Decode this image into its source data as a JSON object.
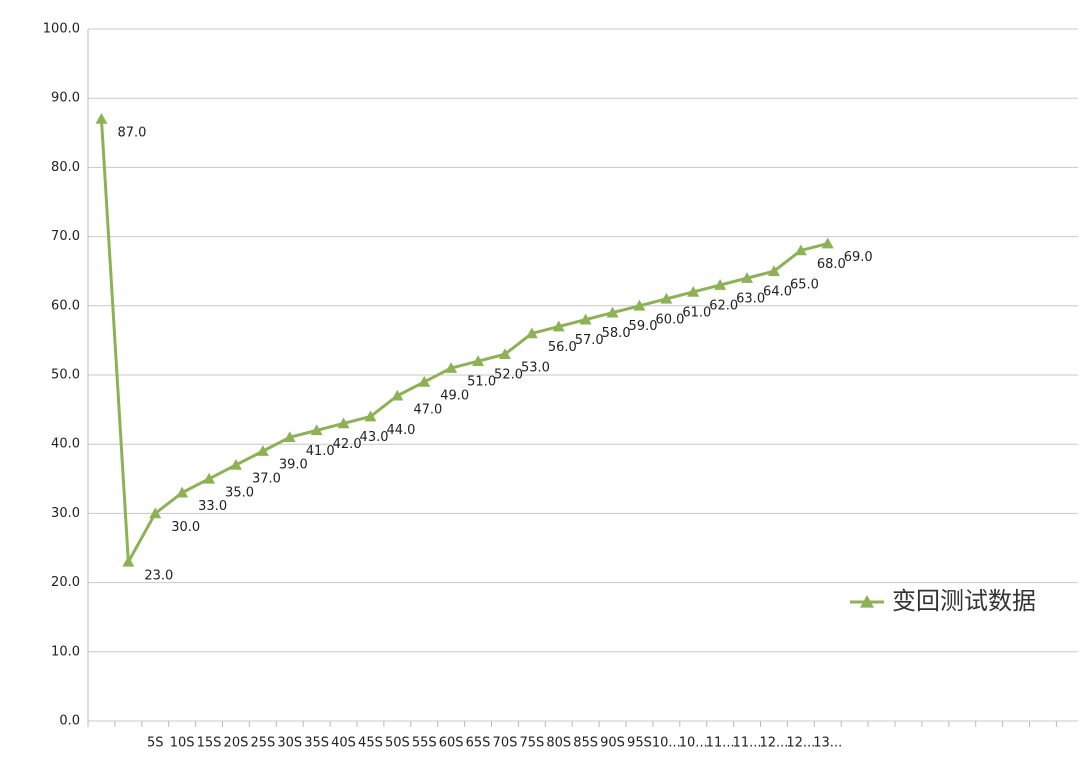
{
  "chart_data": {
    "type": "line",
    "categories": [
      null,
      null,
      "5S",
      "10S",
      "15S",
      "20S",
      "25S",
      "30S",
      "35S",
      "40S",
      "45S",
      "50S",
      "55S",
      "60S",
      "65S",
      "70S",
      "75S",
      "80S",
      "85S",
      "90S",
      "95S",
      "10...",
      "10...",
      "11...",
      "11...",
      "12...",
      "12...",
      "13...",
      null,
      null,
      null,
      null,
      null,
      null,
      null,
      null
    ],
    "series": [
      {
        "name": "变回测试数据",
        "color": "#8db255",
        "values": [
          87,
          23,
          30,
          33,
          35,
          37,
          39,
          41,
          42,
          43,
          44,
          47,
          49,
          51,
          52,
          53,
          56,
          57,
          58,
          59,
          60,
          61,
          62,
          63,
          64,
          65,
          68,
          69,
          null,
          null,
          null,
          null,
          null,
          null,
          null,
          null
        ],
        "value_labels": [
          "87.0",
          "23.0",
          "30.0",
          "33.0",
          "35.0",
          "37.0",
          "39.0",
          "41.0",
          "42.0",
          "43.0",
          "44.0",
          "47.0",
          "49.0",
          "51.0",
          "52.0",
          "53.0",
          "56.0",
          "57.0",
          "58.0",
          "59.0",
          "60.0",
          "61.0",
          "62.0",
          "63.0",
          "64.0",
          "65.0",
          "68.0",
          "69.0",
          null,
          null,
          null,
          null,
          null,
          null,
          null,
          null
        ]
      }
    ],
    "ylim": [
      0,
      100
    ],
    "yticks": [
      {
        "value": 0,
        "label": "0.0"
      },
      {
        "value": 10,
        "label": "10.0"
      },
      {
        "value": 20,
        "label": "20.0"
      },
      {
        "value": 30,
        "label": "30.0"
      },
      {
        "value": 40,
        "label": "40.0"
      },
      {
        "value": 50,
        "label": "50.0"
      },
      {
        "value": 60,
        "label": "60.0"
      },
      {
        "value": 70,
        "label": "70.0"
      },
      {
        "value": 80,
        "label": "80.0"
      },
      {
        "value": 90,
        "label": "90.0"
      },
      {
        "value": 100,
        "label": "100.0"
      }
    ],
    "grid": true,
    "legend": "right"
  }
}
